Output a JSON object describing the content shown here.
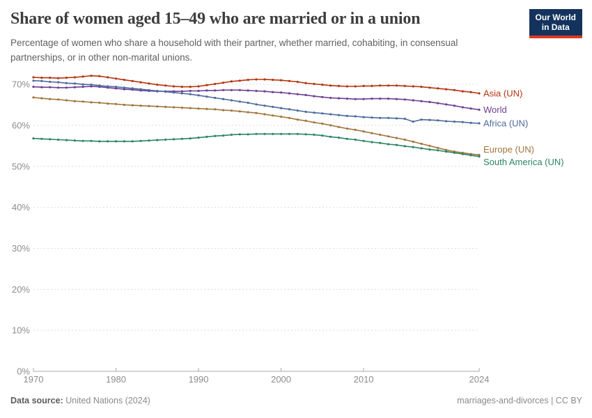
{
  "logo": {
    "line1": "Our World",
    "line2": "in Data"
  },
  "footer": {
    "datasource_label": "Data source:",
    "datasource_value": "United Nations (2024)",
    "note_right": "marriages-and-divorces | CC BY"
  },
  "chart_data": {
    "type": "line",
    "title": "Share of women aged 15–49 who are married or in a union",
    "subtitle": "Percentage of women who share a household with their partner, whether married, cohabiting, in consensual partnerships, or in other non-marital unions.",
    "xlabel": "",
    "ylabel": "",
    "ylim": [
      0,
      75
    ],
    "yticks": [
      0,
      10,
      20,
      30,
      40,
      50,
      60,
      70
    ],
    "ytick_suffix": "%",
    "xticks": [
      1970,
      1980,
      1990,
      2000,
      2010,
      2024
    ],
    "grid": "dashed-horizontal",
    "legend_position": "end-of-line-labels",
    "years": [
      1970,
      1971,
      1972,
      1973,
      1974,
      1975,
      1976,
      1977,
      1978,
      1979,
      1980,
      1981,
      1982,
      1983,
      1984,
      1985,
      1986,
      1987,
      1988,
      1989,
      1990,
      1991,
      1992,
      1993,
      1994,
      1995,
      1996,
      1997,
      1998,
      1999,
      2000,
      2001,
      2002,
      2003,
      2004,
      2005,
      2006,
      2007,
      2008,
      2009,
      2010,
      2011,
      2012,
      2013,
      2014,
      2015,
      2016,
      2017,
      2018,
      2019,
      2020,
      2021,
      2022,
      2023,
      2024
    ],
    "series": [
      {
        "name": "Asia (UN)",
        "color": "#B5340F",
        "values": [
          71.7,
          71.6,
          71.6,
          71.5,
          71.6,
          71.7,
          71.9,
          72.1,
          72.0,
          71.7,
          71.4,
          71.1,
          70.8,
          70.5,
          70.2,
          69.9,
          69.7,
          69.5,
          69.4,
          69.4,
          69.5,
          69.8,
          70.1,
          70.4,
          70.7,
          70.9,
          71.1,
          71.2,
          71.2,
          71.1,
          71.0,
          70.8,
          70.6,
          70.3,
          70.1,
          69.9,
          69.7,
          69.6,
          69.5,
          69.5,
          69.6,
          69.6,
          69.7,
          69.7,
          69.7,
          69.6,
          69.5,
          69.4,
          69.2,
          69.0,
          68.8,
          68.6,
          68.3,
          68.1,
          67.8
        ]
      },
      {
        "name": "World",
        "color": "#6D3E91",
        "values": [
          69.4,
          69.3,
          69.3,
          69.2,
          69.2,
          69.3,
          69.4,
          69.5,
          69.4,
          69.2,
          69.0,
          68.8,
          68.7,
          68.5,
          68.4,
          68.3,
          68.3,
          68.3,
          68.3,
          68.4,
          68.4,
          68.5,
          68.5,
          68.6,
          68.6,
          68.6,
          68.5,
          68.4,
          68.3,
          68.1,
          68.0,
          67.8,
          67.6,
          67.4,
          67.1,
          66.9,
          66.7,
          66.6,
          66.5,
          66.4,
          66.4,
          66.5,
          66.5,
          66.5,
          66.4,
          66.3,
          66.1,
          65.9,
          65.7,
          65.4,
          65.1,
          64.8,
          64.4,
          64.1,
          63.8
        ]
      },
      {
        "name": "Africa (UN)",
        "color": "#4C6A9C",
        "values": [
          70.9,
          70.8,
          70.6,
          70.5,
          70.3,
          70.2,
          70.0,
          69.9,
          69.7,
          69.5,
          69.4,
          69.2,
          69.0,
          68.8,
          68.6,
          68.4,
          68.2,
          68.0,
          67.8,
          67.6,
          67.3,
          67.0,
          66.7,
          66.4,
          66.1,
          65.8,
          65.5,
          65.1,
          64.8,
          64.5,
          64.2,
          63.9,
          63.6,
          63.3,
          63.1,
          62.9,
          62.7,
          62.5,
          62.3,
          62.2,
          62.0,
          61.9,
          61.8,
          61.8,
          61.7,
          61.6,
          60.9,
          61.4,
          61.3,
          61.2,
          61.0,
          60.9,
          60.8,
          60.6,
          60.5
        ]
      },
      {
        "name": "Europe (UN)",
        "color": "#A1753C",
        "values": [
          66.8,
          66.6,
          66.4,
          66.3,
          66.1,
          65.9,
          65.8,
          65.6,
          65.5,
          65.3,
          65.2,
          65.0,
          64.9,
          64.8,
          64.7,
          64.6,
          64.5,
          64.4,
          64.3,
          64.2,
          64.1,
          64.0,
          63.9,
          63.7,
          63.6,
          63.4,
          63.2,
          63.0,
          62.7,
          62.4,
          62.1,
          61.8,
          61.4,
          61.1,
          60.7,
          60.4,
          60.0,
          59.6,
          59.2,
          58.9,
          58.5,
          58.1,
          57.7,
          57.3,
          56.9,
          56.5,
          56.0,
          55.5,
          55.0,
          54.5,
          54.0,
          53.6,
          53.3,
          53.0,
          52.8
        ]
      },
      {
        "name": "South America (UN)",
        "color": "#2C8465",
        "values": [
          56.8,
          56.7,
          56.6,
          56.5,
          56.4,
          56.3,
          56.2,
          56.2,
          56.1,
          56.1,
          56.1,
          56.1,
          56.1,
          56.2,
          56.3,
          56.4,
          56.5,
          56.6,
          56.7,
          56.8,
          57.0,
          57.2,
          57.4,
          57.5,
          57.7,
          57.8,
          57.8,
          57.9,
          57.9,
          57.9,
          57.9,
          57.9,
          57.9,
          57.8,
          57.7,
          57.5,
          57.2,
          57.0,
          56.7,
          56.5,
          56.2,
          55.9,
          55.7,
          55.4,
          55.2,
          54.9,
          54.7,
          54.4,
          54.1,
          53.9,
          53.6,
          53.3,
          53.0,
          52.7,
          52.4
        ]
      }
    ]
  }
}
